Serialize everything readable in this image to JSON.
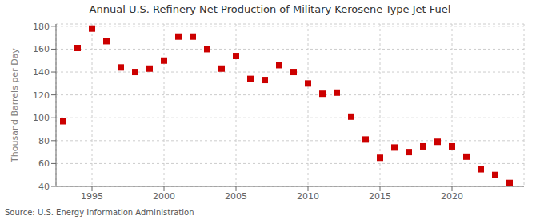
{
  "chart_data": {
    "type": "scatter",
    "title": "Annual U.S. Refinery Net Production of Military Kerosene-Type Jet Fuel",
    "y_label": "Thousand Barrels per Day",
    "annotations": [
      "Source: U.S. Energy Information Administration"
    ],
    "x": [
      1993,
      1994,
      1995,
      1996,
      1997,
      1998,
      1999,
      2000,
      2001,
      2002,
      2003,
      2004,
      2005,
      2006,
      2007,
      2008,
      2009,
      2010,
      2011,
      2012,
      2013,
      2014,
      2015,
      2016,
      2017,
      2018,
      2019,
      2020,
      2021,
      2022,
      2023,
      2024
    ],
    "values": [
      97,
      161,
      178,
      167,
      144,
      140,
      143,
      150,
      171,
      171,
      160,
      143,
      154,
      134,
      133,
      146,
      140,
      130,
      121,
      122,
      101,
      81,
      65,
      74,
      70,
      75,
      79,
      75,
      66,
      55,
      50,
      43
    ],
    "color": "#cc0000",
    "marker": "square",
    "xlim": [
      1992.5,
      2025
    ],
    "xticks": [
      1995,
      2000,
      2005,
      2010,
      2015,
      2020
    ],
    "ylim": [
      40,
      182
    ],
    "yticks": [
      40,
      60,
      80,
      100,
      120,
      140,
      160,
      180
    ],
    "grid": true
  }
}
